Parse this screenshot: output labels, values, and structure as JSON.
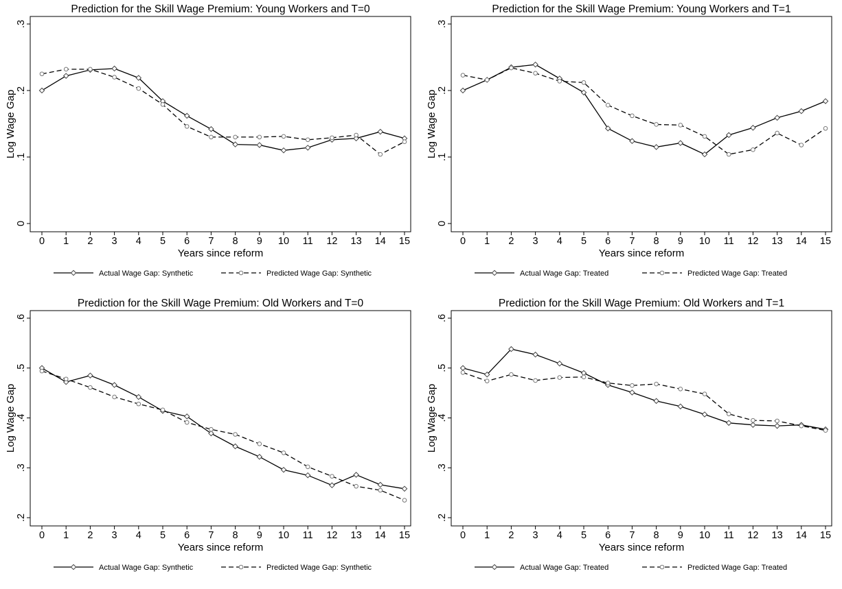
{
  "chart_data": [
    {
      "type": "line",
      "title": "Prediction for the Skill Wage Premium: Young Workers and T=0",
      "xlabel": "Years since reform",
      "ylabel": "Log Wage Gap",
      "x": [
        0,
        1,
        2,
        3,
        4,
        5,
        6,
        7,
        8,
        9,
        10,
        11,
        12,
        13,
        14,
        15
      ],
      "x_tick_labels": [
        "0",
        "1",
        "2",
        "3",
        "4",
        "5",
        "6",
        "7",
        "8",
        "9",
        "10",
        "11",
        "12",
        "13",
        "14",
        "15"
      ],
      "ylim": [
        0,
        0.3
      ],
      "y_ticks": [
        0,
        0.1,
        0.2,
        0.3
      ],
      "y_tick_labels": [
        "0",
        ".1",
        ".2",
        ".3"
      ],
      "legend_position": "bottom",
      "series": [
        {
          "name": "Actual Wage Gap: Synthetic",
          "style": "solid-diamond",
          "values": [
            0.2,
            0.222,
            0.231,
            0.233,
            0.219,
            0.184,
            0.162,
            0.142,
            0.119,
            0.118,
            0.11,
            0.114,
            0.126,
            0.128,
            0.138,
            0.128
          ]
        },
        {
          "name": "Predicted Wage Gap: Synthetic",
          "style": "dashed-circle",
          "values": [
            0.225,
            0.232,
            0.232,
            0.22,
            0.203,
            0.179,
            0.146,
            0.13,
            0.13,
            0.13,
            0.131,
            0.126,
            0.129,
            0.133,
            0.104,
            0.123
          ]
        }
      ]
    },
    {
      "type": "line",
      "title": "Prediction for the Skill Wage Premium: Young Workers and T=1",
      "xlabel": "Years since reform",
      "ylabel": "Log Wage Gap",
      "x": [
        0,
        1,
        2,
        3,
        4,
        5,
        6,
        7,
        8,
        9,
        10,
        11,
        12,
        13,
        14,
        15
      ],
      "x_tick_labels": [
        "0",
        "1",
        "2",
        "3",
        "4",
        "5",
        "6",
        "7",
        "8",
        "9",
        "10",
        "11",
        "12",
        "13",
        "14",
        "15"
      ],
      "ylim": [
        0,
        0.3
      ],
      "y_ticks": [
        0,
        0.1,
        0.2,
        0.3
      ],
      "y_tick_labels": [
        "0",
        ".1",
        ".2",
        ".3"
      ],
      "legend_position": "bottom",
      "series": [
        {
          "name": "Actual Wage Gap: Treated",
          "style": "solid-diamond",
          "values": [
            0.2,
            0.216,
            0.235,
            0.239,
            0.218,
            0.197,
            0.143,
            0.124,
            0.115,
            0.121,
            0.104,
            0.133,
            0.144,
            0.159,
            0.169,
            0.184
          ]
        },
        {
          "name": "Predicted Wage Gap: Treated",
          "style": "dashed-circle",
          "values": [
            0.223,
            0.216,
            0.234,
            0.226,
            0.214,
            0.212,
            0.178,
            0.162,
            0.149,
            0.148,
            0.131,
            0.104,
            0.111,
            0.136,
            0.118,
            0.143
          ]
        }
      ]
    },
    {
      "type": "line",
      "title": "Prediction for the Skill Wage Premium: Old Workers and T=0",
      "xlabel": "Years since reform",
      "ylabel": "Log Wage Gap",
      "x": [
        0,
        1,
        2,
        3,
        4,
        5,
        6,
        7,
        8,
        9,
        10,
        11,
        12,
        13,
        14,
        15
      ],
      "x_tick_labels": [
        "0",
        "1",
        "2",
        "3",
        "4",
        "5",
        "6",
        "7",
        "8",
        "9",
        "10",
        "11",
        "12",
        "13",
        "14",
        "15"
      ],
      "ylim": [
        0.2,
        0.6
      ],
      "y_ticks": [
        0.2,
        0.3,
        0.4,
        0.5,
        0.6
      ],
      "y_tick_labels": [
        ".2",
        ".3",
        ".4",
        ".5",
        ".6"
      ],
      "legend_position": "bottom",
      "series": [
        {
          "name": "Actual Wage Gap: Synthetic",
          "style": "solid-diamond",
          "values": [
            0.5,
            0.472,
            0.485,
            0.466,
            0.442,
            0.414,
            0.403,
            0.369,
            0.343,
            0.322,
            0.296,
            0.285,
            0.265,
            0.286,
            0.266,
            0.258
          ]
        },
        {
          "name": "Predicted Wage Gap: Synthetic",
          "style": "dashed-circle",
          "values": [
            0.494,
            0.478,
            0.461,
            0.442,
            0.428,
            0.416,
            0.391,
            0.377,
            0.367,
            0.348,
            0.33,
            0.302,
            0.283,
            0.263,
            0.255,
            0.235
          ]
        }
      ]
    },
    {
      "type": "line",
      "title": "Prediction for the Skill Wage Premium: Old Workers and T=1",
      "xlabel": "Years since reform",
      "ylabel": "Log Wage Gap",
      "x": [
        0,
        1,
        2,
        3,
        4,
        5,
        6,
        7,
        8,
        9,
        10,
        11,
        12,
        13,
        14,
        15
      ],
      "x_tick_labels": [
        "0",
        "1",
        "2",
        "3",
        "4",
        "5",
        "6",
        "7",
        "8",
        "9",
        "10",
        "11",
        "12",
        "13",
        "14",
        "15"
      ],
      "ylim": [
        0.2,
        0.6
      ],
      "y_ticks": [
        0.2,
        0.3,
        0.4,
        0.5,
        0.6
      ],
      "y_tick_labels": [
        ".2",
        ".3",
        ".4",
        ".5",
        ".6"
      ],
      "legend_position": "bottom",
      "series": [
        {
          "name": "Actual Wage Gap: Treated",
          "style": "solid-diamond",
          "values": [
            0.5,
            0.487,
            0.538,
            0.527,
            0.509,
            0.49,
            0.466,
            0.451,
            0.434,
            0.423,
            0.407,
            0.39,
            0.386,
            0.384,
            0.386,
            0.377
          ]
        },
        {
          "name": "Predicted Wage Gap: Treated",
          "style": "dashed-circle",
          "values": [
            0.491,
            0.474,
            0.487,
            0.475,
            0.481,
            0.482,
            0.47,
            0.465,
            0.468,
            0.458,
            0.448,
            0.408,
            0.395,
            0.394,
            0.384,
            0.375
          ]
        }
      ]
    }
  ]
}
